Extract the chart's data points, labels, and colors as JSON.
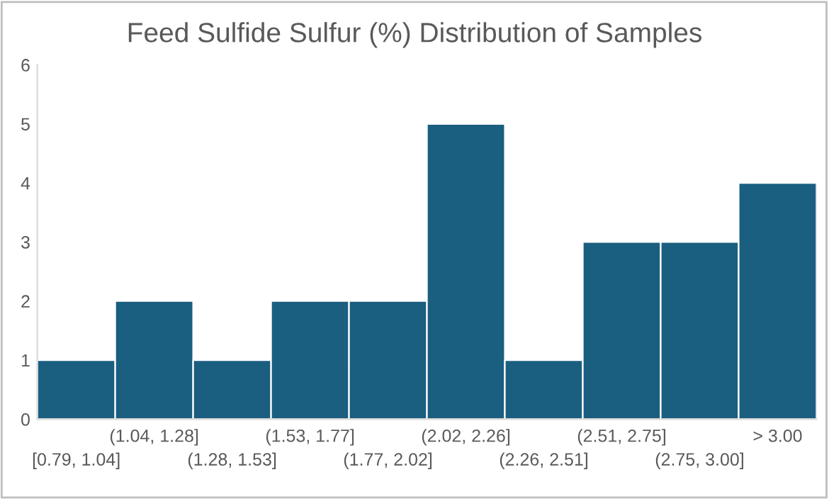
{
  "chart_data": {
    "type": "bar",
    "title": "Feed Sulfide Sulfur (%) Distribution of Samples",
    "categories": [
      "[0.79, 1.04]",
      "(1.04, 1.28]",
      "(1.28, 1.53]",
      "(1.53, 1.77]",
      "(1.77, 2.02]",
      "(2.02, 2.26]",
      "(2.26, 2.51]",
      "(2.51, 2.75]",
      "(2.75, 3.00]",
      "> 3.00"
    ],
    "values": [
      1,
      2,
      1,
      2,
      2,
      5,
      1,
      3,
      3,
      4
    ],
    "color": "#1a5e80",
    "ylim": [
      0,
      6
    ],
    "yticks": [
      0,
      1,
      2,
      3,
      4,
      5,
      6
    ],
    "grid": false,
    "legend": false
  }
}
